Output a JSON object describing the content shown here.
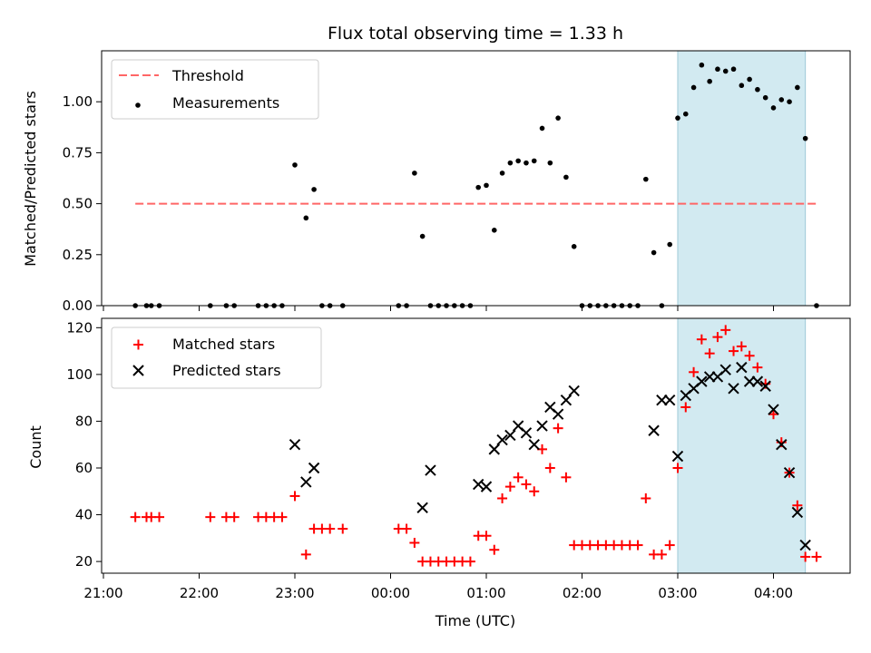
{
  "chart_data": [
    {
      "type": "scatter",
      "title": "Flux total observing time = 1.33 h",
      "xlabel": "",
      "ylabel": "Matched/Predicted stars",
      "ylim": [
        0.0,
        1.25
      ],
      "yticks": [
        "0.00",
        "0.25",
        "0.50",
        "0.75",
        "1.00"
      ],
      "grid": false,
      "legend_position": "top-left",
      "highlight": {
        "start": "03:00",
        "end": "04:20",
        "color": "#add8e6"
      },
      "threshold": {
        "name": "Threshold",
        "value": 0.5,
        "x_start": "21:20",
        "x_end": "04:27",
        "color": "#ff6666"
      },
      "series": [
        {
          "name": "Measurements",
          "color": "#000000",
          "marker": "dot",
          "x": [
            "21:20",
            "21:27",
            "21:30",
            "21:35",
            "22:07",
            "22:17",
            "22:22",
            "22:37",
            "22:42",
            "22:47",
            "22:52",
            "23:00",
            "23:07",
            "23:12",
            "23:17",
            "23:22",
            "23:30",
            "00:05",
            "00:10",
            "00:15",
            "00:20",
            "00:25",
            "00:30",
            "00:35",
            "00:40",
            "00:45",
            "00:50",
            "00:55",
            "01:00",
            "01:05",
            "01:10",
            "01:15",
            "01:20",
            "01:25",
            "01:30",
            "01:35",
            "01:40",
            "01:45",
            "01:50",
            "01:55",
            "02:00",
            "02:05",
            "02:10",
            "02:15",
            "02:20",
            "02:25",
            "02:30",
            "02:35",
            "02:40",
            "02:45",
            "02:50",
            "02:55",
            "03:00",
            "03:05",
            "03:10",
            "03:15",
            "03:20",
            "03:25",
            "03:30",
            "03:35",
            "03:40",
            "03:45",
            "03:50",
            "03:55",
            "04:00",
            "04:05",
            "04:10",
            "04:15",
            "04:20",
            "04:27"
          ],
          "y": [
            0,
            0,
            0,
            0,
            0,
            0,
            0,
            0,
            0,
            0,
            0,
            0.69,
            0.43,
            0.57,
            0,
            0,
            0,
            0,
            0,
            0.65,
            0.34,
            0,
            0,
            0,
            0,
            0,
            0,
            0.58,
            0.59,
            0.37,
            0.65,
            0.7,
            0.71,
            0.7,
            0.71,
            0.87,
            0.7,
            0.92,
            0.63,
            0.29,
            0,
            0,
            0,
            0,
            0,
            0,
            0,
            0,
            0.62,
            0.26,
            0,
            0.3,
            0.92,
            0.94,
            1.07,
            1.18,
            1.1,
            1.16,
            1.15,
            1.16,
            1.08,
            1.11,
            1.06,
            1.02,
            0.97,
            1.01,
            1.0,
            1.07,
            0.82,
            0
          ]
        }
      ]
    },
    {
      "type": "scatter",
      "title": "",
      "xlabel": "Time (UTC)",
      "ylabel": "Count",
      "ylim": [
        15,
        124
      ],
      "yticks": [
        "20",
        "40",
        "60",
        "80",
        "100",
        "120"
      ],
      "xticks": [
        "21:00",
        "22:00",
        "23:00",
        "00:00",
        "01:00",
        "02:00",
        "03:00",
        "04:00"
      ],
      "grid": false,
      "legend_position": "top-left",
      "highlight": {
        "start": "03:00",
        "end": "04:20",
        "color": "#add8e6"
      },
      "series": [
        {
          "name": "Matched stars",
          "color": "#ff0000",
          "marker": "plus",
          "x": [
            "21:20",
            "21:27",
            "21:30",
            "21:35",
            "22:07",
            "22:17",
            "22:22",
            "22:37",
            "22:42",
            "22:47",
            "22:52",
            "23:00",
            "23:07",
            "23:12",
            "23:17",
            "23:22",
            "23:30",
            "00:05",
            "00:10",
            "00:15",
            "00:20",
            "00:25",
            "00:30",
            "00:35",
            "00:40",
            "00:45",
            "00:50",
            "00:55",
            "01:00",
            "01:05",
            "01:10",
            "01:15",
            "01:20",
            "01:25",
            "01:30",
            "01:35",
            "01:40",
            "01:45",
            "01:50",
            "01:55",
            "02:00",
            "02:05",
            "02:10",
            "02:15",
            "02:20",
            "02:25",
            "02:30",
            "02:35",
            "02:40",
            "02:45",
            "02:50",
            "02:55",
            "03:00",
            "03:05",
            "03:10",
            "03:15",
            "03:20",
            "03:25",
            "03:30",
            "03:35",
            "03:40",
            "03:45",
            "03:50",
            "03:55",
            "04:00",
            "04:05",
            "04:10",
            "04:15",
            "04:20",
            "04:27"
          ],
          "y": [
            39,
            39,
            39,
            39,
            39,
            39,
            39,
            39,
            39,
            39,
            39,
            48,
            23,
            34,
            34,
            34,
            34,
            34,
            34,
            28,
            20,
            20,
            20,
            20,
            20,
            20,
            20,
            31,
            31,
            25,
            47,
            52,
            56,
            53,
            50,
            68,
            60,
            77,
            56,
            27,
            27,
            27,
            27,
            27,
            27,
            27,
            27,
            27,
            47,
            23,
            23,
            27,
            60,
            86,
            101,
            115,
            109,
            116,
            119,
            110,
            112,
            108,
            103,
            96,
            83,
            71,
            58,
            44,
            22,
            22
          ]
        },
        {
          "name": "Predicted stars",
          "color": "#000000",
          "marker": "cross",
          "x": [
            "23:00",
            "23:07",
            "23:12",
            "00:20",
            "00:25",
            "00:55",
            "01:00",
            "01:05",
            "01:10",
            "01:15",
            "01:20",
            "01:25",
            "01:30",
            "01:35",
            "01:40",
            "01:45",
            "01:50",
            "01:55",
            "02:45",
            "02:50",
            "02:55",
            "03:00",
            "03:05",
            "03:10",
            "03:15",
            "03:20",
            "03:25",
            "03:30",
            "03:35",
            "03:40",
            "03:45",
            "03:50",
            "03:55",
            "04:00",
            "04:05",
            "04:10",
            "04:15",
            "04:20"
          ],
          "y": [
            70,
            54,
            60,
            43,
            59,
            53,
            52,
            68,
            72,
            74,
            78,
            75,
            70,
            78,
            86,
            83,
            89,
            93,
            76,
            89,
            89,
            65,
            91,
            94,
            97,
            99,
            99,
            102,
            94,
            103,
            97,
            97,
            95,
            85,
            70,
            58,
            41,
            27
          ]
        }
      ]
    }
  ]
}
